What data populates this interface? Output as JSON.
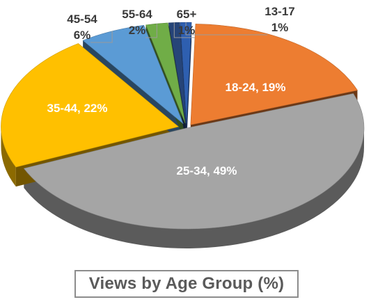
{
  "caption": "Views by Age Group (%)",
  "chart_data": {
    "type": "pie",
    "style": "3d-exploded",
    "title": "Views by Age Group (%)",
    "slices": [
      {
        "label": "13-17",
        "value": 1,
        "pct_label": "1%",
        "color": "#2e5fb0",
        "label_position": "outside"
      },
      {
        "label": "18-24",
        "value": 19,
        "pct_label": "19%",
        "color": "#ed7d31",
        "label_position": "inside"
      },
      {
        "label": "25-34",
        "value": 49,
        "pct_label": "49%",
        "color": "#a5a5a5",
        "label_position": "inside"
      },
      {
        "label": "35-44",
        "value": 22,
        "pct_label": "22%",
        "color": "#ffc000",
        "label_position": "inside"
      },
      {
        "label": "45-54",
        "value": 6,
        "pct_label": "6%",
        "color": "#5b9bd5",
        "label_position": "outside"
      },
      {
        "label": "55-64",
        "value": 2,
        "pct_label": "2%",
        "color": "#70ad47",
        "label_position": "outside"
      },
      {
        "label": "65+",
        "value": 1,
        "pct_label": "1%",
        "color": "#264478",
        "label_position": "outside"
      }
    ]
  }
}
